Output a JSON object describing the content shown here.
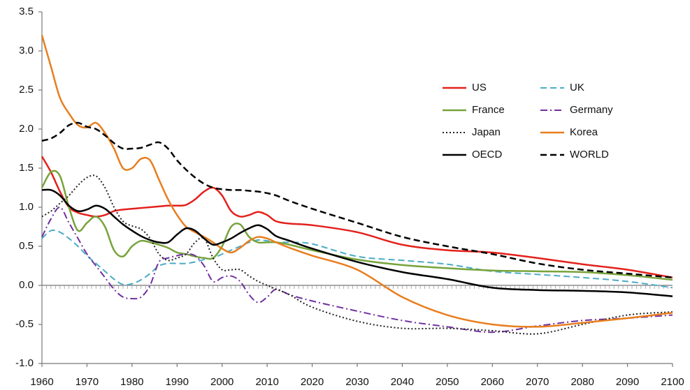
{
  "chart_data": {
    "type": "line",
    "x": [
      1960,
      1962,
      1964,
      1966,
      1968,
      1970,
      1972,
      1974,
      1976,
      1978,
      1980,
      1982,
      1984,
      1986,
      1988,
      1990,
      1992,
      1994,
      1996,
      1998,
      2000,
      2002,
      2004,
      2006,
      2008,
      2010,
      2012,
      2015,
      2020,
      2030,
      2040,
      2050,
      2060,
      2070,
      2080,
      2090,
      2100
    ],
    "xlim": [
      1960,
      2100
    ],
    "xticks": [
      1960,
      1970,
      1980,
      1990,
      2000,
      2010,
      2020,
      2030,
      2040,
      2050,
      2060,
      2070,
      2080,
      2090,
      2100
    ],
    "ylim": [
      -1.0,
      3.5
    ],
    "yticks": [
      {
        "value": -1,
        "label": "-1.0"
      },
      -0.5,
      {
        "value": 0,
        "label": "0.0"
      },
      0.5,
      {
        "value": 1,
        "label": "1.0"
      },
      1.5,
      {
        "value": 2,
        "label": "2.0"
      },
      2.5,
      {
        "value": 3,
        "label": "3.0"
      },
      3.5
    ],
    "series": [
      {
        "name": "US",
        "color": "#e3211c",
        "dash": "solid",
        "width": 2.5,
        "values": [
          1.65,
          1.45,
          1.2,
          1.0,
          0.93,
          0.9,
          0.88,
          0.9,
          0.95,
          0.97,
          0.98,
          0.99,
          1.0,
          1.01,
          1.02,
          1.02,
          1.03,
          1.1,
          1.2,
          1.25,
          1.15,
          0.95,
          0.88,
          0.9,
          0.94,
          0.9,
          0.82,
          0.79,
          0.77,
          0.68,
          0.52,
          0.45,
          0.42,
          0.35,
          0.27,
          0.2,
          0.1
        ]
      },
      {
        "name": "UK",
        "color": "#4bacc6",
        "dash": "dashed",
        "width": 2,
        "values": [
          0.6,
          0.7,
          0.68,
          0.6,
          0.5,
          0.38,
          0.28,
          0.18,
          0.08,
          0.01,
          0.02,
          0.07,
          0.15,
          0.25,
          0.28,
          0.28,
          0.28,
          0.3,
          0.33,
          0.35,
          0.4,
          0.45,
          0.5,
          0.55,
          0.58,
          0.57,
          0.55,
          0.55,
          0.53,
          0.37,
          0.32,
          0.27,
          0.18,
          0.14,
          0.1,
          0.05,
          -0.03
        ]
      },
      {
        "name": "France",
        "color": "#77a33b",
        "dash": "solid",
        "width": 2.5,
        "values": [
          1.25,
          1.45,
          1.4,
          1.0,
          0.7,
          0.8,
          0.88,
          0.75,
          0.45,
          0.37,
          0.5,
          0.57,
          0.55,
          0.52,
          0.48,
          0.42,
          0.4,
          0.37,
          0.35,
          0.35,
          0.5,
          0.75,
          0.78,
          0.62,
          0.55,
          0.55,
          0.55,
          0.52,
          0.45,
          0.33,
          0.26,
          0.22,
          0.19,
          0.18,
          0.17,
          0.13,
          0.07
        ]
      },
      {
        "name": "Germany",
        "color": "#7030a0",
        "dash": "dashdot",
        "width": 2,
        "values": [
          0.62,
          0.85,
          1.0,
          0.8,
          0.6,
          0.4,
          0.25,
          0.1,
          -0.05,
          -0.15,
          -0.17,
          -0.15,
          0.0,
          0.3,
          0.35,
          0.38,
          0.4,
          0.38,
          0.25,
          0.05,
          0.1,
          0.12,
          0.05,
          -0.12,
          -0.22,
          -0.15,
          -0.05,
          -0.12,
          -0.2,
          -0.33,
          -0.45,
          -0.53,
          -0.6,
          -0.52,
          -0.45,
          -0.42,
          -0.38
        ]
      },
      {
        "name": "Japan",
        "color": "#222222",
        "dash": "dotted",
        "width": 2,
        "values": [
          0.88,
          0.95,
          1.05,
          1.15,
          1.28,
          1.38,
          1.4,
          1.25,
          1.0,
          0.82,
          0.76,
          0.72,
          0.6,
          0.4,
          0.32,
          0.35,
          0.4,
          0.55,
          0.6,
          0.35,
          0.2,
          0.2,
          0.2,
          0.12,
          0.05,
          0.0,
          -0.05,
          -0.12,
          -0.28,
          -0.46,
          -0.55,
          -0.55,
          -0.58,
          -0.62,
          -0.5,
          -0.38,
          -0.34
        ]
      },
      {
        "name": "Korea",
        "color": "#e87e1f",
        "dash": "solid",
        "width": 2.5,
        "values": [
          3.2,
          2.8,
          2.4,
          2.2,
          2.05,
          2.02,
          2.08,
          1.95,
          1.75,
          1.5,
          1.5,
          1.62,
          1.6,
          1.35,
          1.1,
          0.9,
          0.75,
          0.68,
          0.62,
          0.55,
          0.47,
          0.42,
          0.48,
          0.57,
          0.62,
          0.6,
          0.55,
          0.48,
          0.38,
          0.2,
          -0.15,
          -0.38,
          -0.5,
          -0.53,
          -0.48,
          -0.42,
          -0.35
        ]
      },
      {
        "name": "OECD",
        "color": "#000000",
        "dash": "solid",
        "width": 2.5,
        "values": [
          1.22,
          1.22,
          1.15,
          1.02,
          0.95,
          0.97,
          1.02,
          0.98,
          0.88,
          0.78,
          0.7,
          0.63,
          0.58,
          0.55,
          0.55,
          0.65,
          0.73,
          0.7,
          0.6,
          0.52,
          0.55,
          0.6,
          0.67,
          0.73,
          0.77,
          0.72,
          0.63,
          0.57,
          0.47,
          0.3,
          0.17,
          0.08,
          -0.03,
          -0.06,
          -0.07,
          -0.09,
          -0.14
        ]
      },
      {
        "name": "WORLD",
        "color": "#000000",
        "dash": "dashed",
        "width": 2.5,
        "values": [
          1.85,
          1.88,
          1.95,
          2.05,
          2.08,
          2.03,
          2.0,
          1.92,
          1.82,
          1.75,
          1.75,
          1.76,
          1.8,
          1.83,
          1.75,
          1.6,
          1.48,
          1.38,
          1.3,
          1.25,
          1.23,
          1.22,
          1.22,
          1.21,
          1.2,
          1.18,
          1.15,
          1.08,
          0.98,
          0.8,
          0.62,
          0.5,
          0.4,
          0.28,
          0.2,
          0.15,
          0.1
        ]
      }
    ]
  }
}
